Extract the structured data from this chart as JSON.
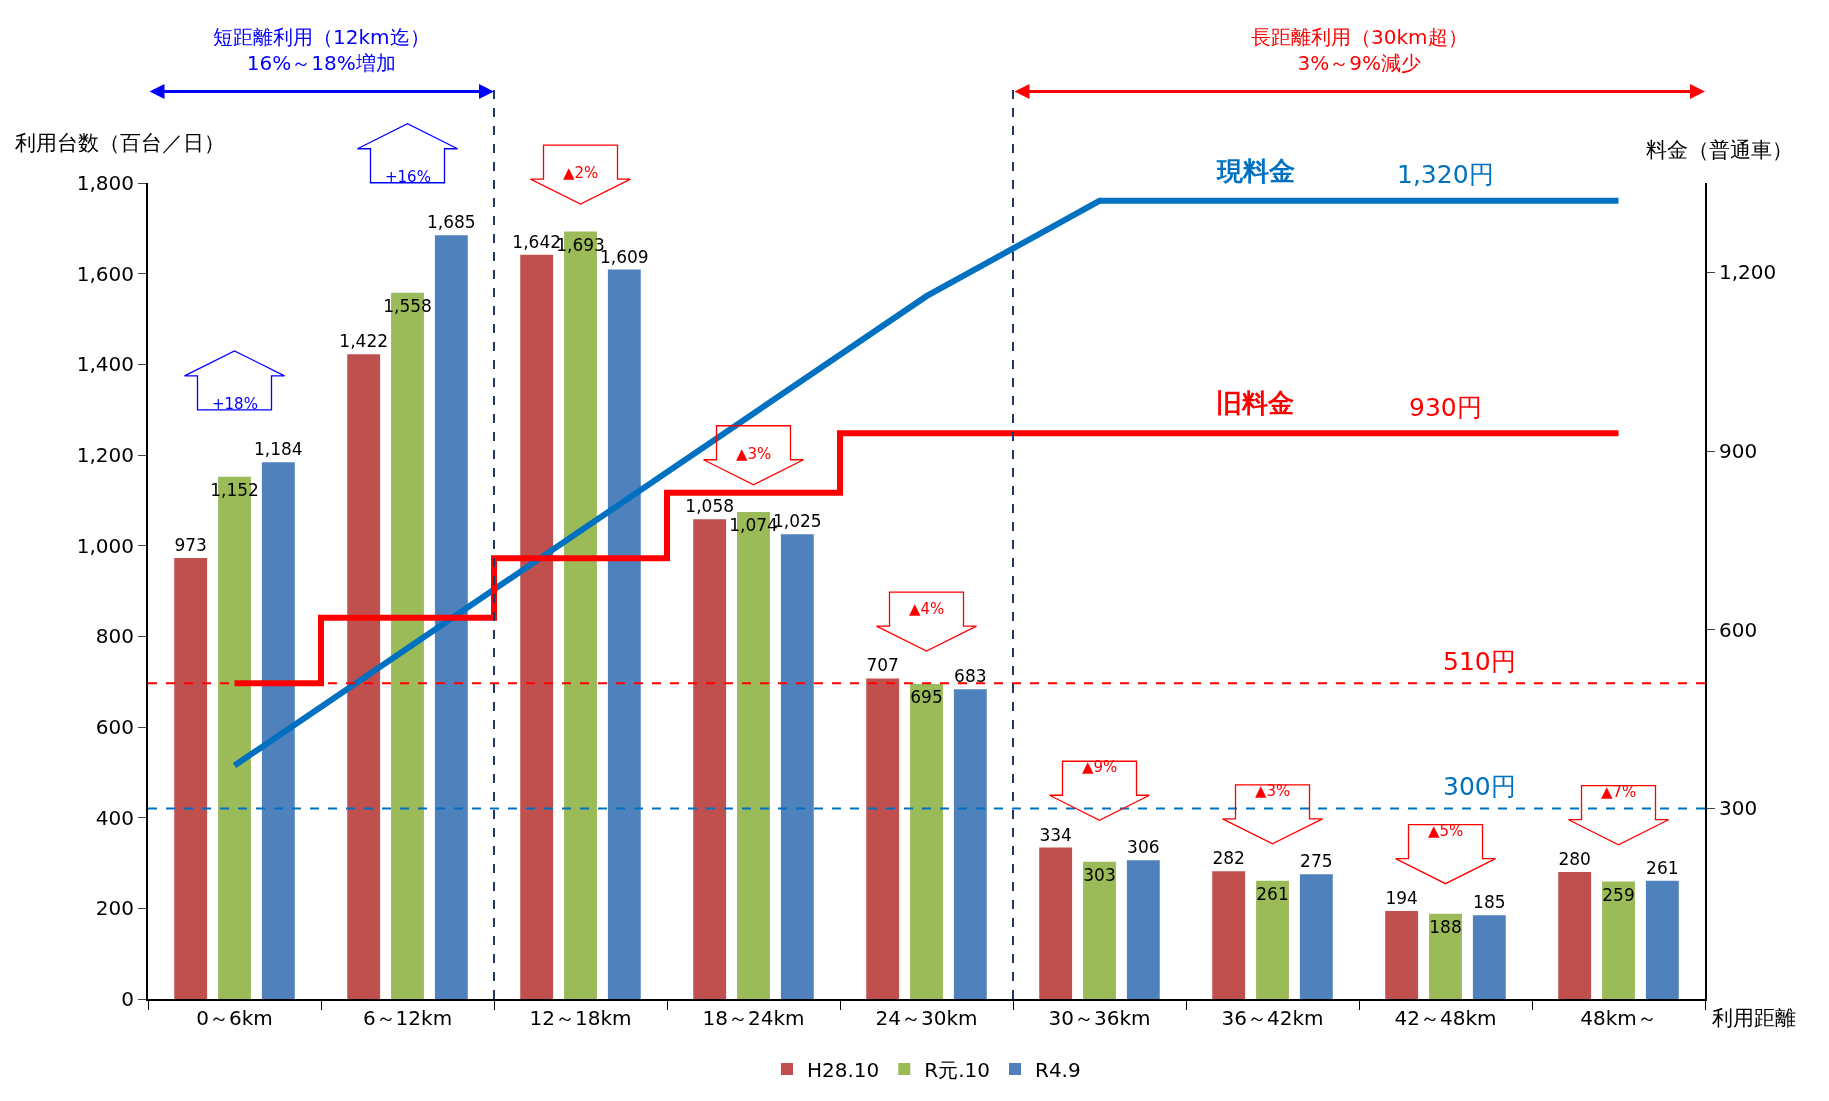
{
  "chart_data": {
    "type": "bar",
    "ylabel": "利用台数（百台／日）",
    "y2label": "料金（普通車）",
    "xlabel": "利用距離",
    "categories": [
      "0～6km",
      "6～12km",
      "12～18km",
      "18～24km",
      "24～30km",
      "30～36km",
      "36～42km",
      "42～48km",
      "48km～"
    ],
    "ylim": [
      0,
      1800
    ],
    "yticks": [
      0,
      200,
      400,
      600,
      800,
      {
        "value": 1000,
        "label": "1,000"
      },
      {
        "value": 1200,
        "label": "1,200"
      },
      {
        "value": 1400,
        "label": "1,400"
      },
      {
        "value": 1600,
        "label": "1,600"
      },
      {
        "value": 1800,
        "label": "1,800"
      }
    ],
    "y2lim": [
      -20,
      1350
    ],
    "y2ticks": [
      300,
      600,
      900,
      {
        "value": 1200,
        "label": "1,200"
      }
    ],
    "legend": "bottom",
    "series": [
      {
        "name": "H28.10",
        "color": "#c0504d",
        "values": [
          973,
          1422,
          1642,
          1058,
          707,
          334,
          282,
          194,
          280
        ],
        "value_labels": [
          "973",
          "1,422",
          "1,642",
          "1,058",
          "707",
          "334",
          "282",
          "194",
          "280"
        ]
      },
      {
        "name": "R元.10",
        "color": "#9bbb59",
        "values": [
          1152,
          1558,
          1693,
          1074,
          695,
          303,
          261,
          188,
          259
        ],
        "value_labels": [
          "1,152",
          "1,558",
          "1,693",
          "1,074",
          "695",
          "303",
          "261",
          "188",
          "259"
        ]
      },
      {
        "name": "R4.9",
        "color": "#4f81bd",
        "values": [
          1184,
          1685,
          1609,
          1025,
          683,
          306,
          275,
          185,
          261
        ],
        "value_labels": [
          "1,184",
          "1,685",
          "1,609",
          "1,025",
          "683",
          "306",
          "275",
          "185",
          "261"
        ]
      },
      {
        "name": "現料金",
        "type": "line",
        "axis": "y2",
        "color": "#0070c0",
        "values": [
          372,
          569,
          766,
          963,
          1160,
          1320,
          1320,
          1320,
          1320
        ],
        "value_labels": [
          null,
          null,
          null,
          null,
          null,
          null,
          null,
          "1,320円",
          null
        ]
      },
      {
        "name": "旧料金",
        "type": "step",
        "axis": "y2",
        "color": "#ff0000",
        "values": [
          510,
          620,
          720,
          830,
          930,
          930,
          930,
          930,
          930
        ],
        "value_labels": [
          null,
          null,
          null,
          null,
          null,
          null,
          null,
          "930円",
          null
        ]
      }
    ],
    "ref_lines": [
      {
        "axis": "y2",
        "value": 510,
        "label": "510円",
        "color": "#ff0000",
        "line_style": "dashed"
      },
      {
        "axis": "y2",
        "value": 300,
        "label": "300円",
        "color": "#0070c0",
        "line_style": "dashed"
      }
    ],
    "annotations": [
      "短距離利用（12km迄）\n16%～18%増加",
      "長距離利用（30km超）\n3%～9%減少",
      "+18%",
      "+16%",
      "▲2%",
      "▲3%",
      "▲4%",
      "▲9%",
      "▲3%",
      "▲5%",
      "▲7%"
    ]
  }
}
